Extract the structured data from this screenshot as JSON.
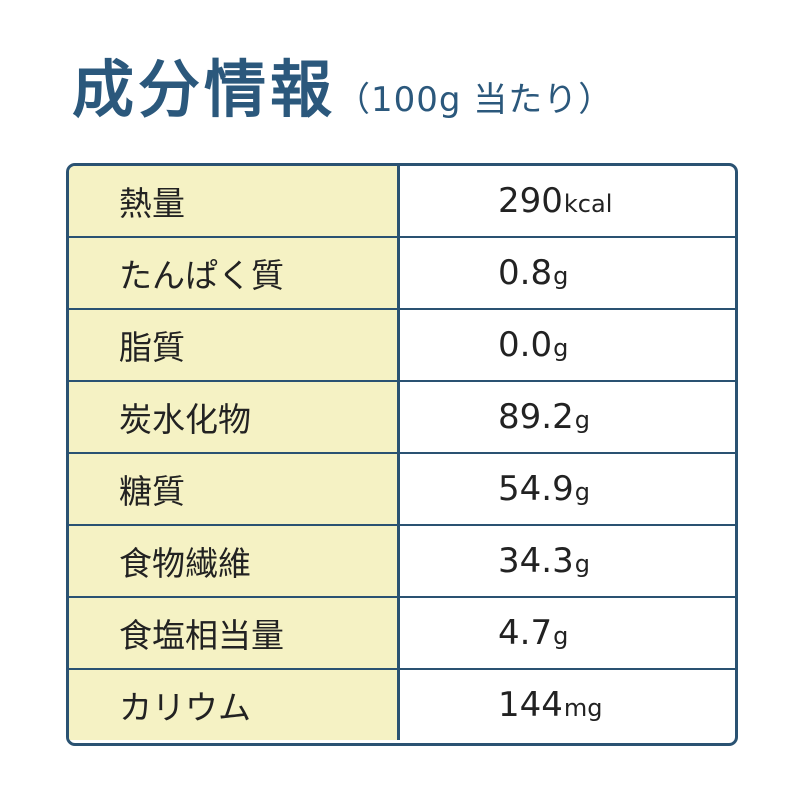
{
  "header": {
    "title": "成分情報",
    "subtitle": "（100g 当たり）"
  },
  "table": {
    "rows": [
      {
        "label": "熱量",
        "value": "290",
        "unit": "kcal"
      },
      {
        "label": "たんぱく質",
        "value": "0.8",
        "unit": "g"
      },
      {
        "label": "脂質",
        "value": "0.0",
        "unit": "g"
      },
      {
        "label": "炭水化物",
        "value": "89.2",
        "unit": "g"
      },
      {
        "label": "糖質",
        "value": "54.9",
        "unit": "g"
      },
      {
        "label": "食物繊維",
        "value": "34.3",
        "unit": "g"
      },
      {
        "label": "食塩相当量",
        "value": "4.7",
        "unit": "g"
      },
      {
        "label": "カリウム",
        "value": "144",
        "unit": "mg"
      }
    ]
  }
}
